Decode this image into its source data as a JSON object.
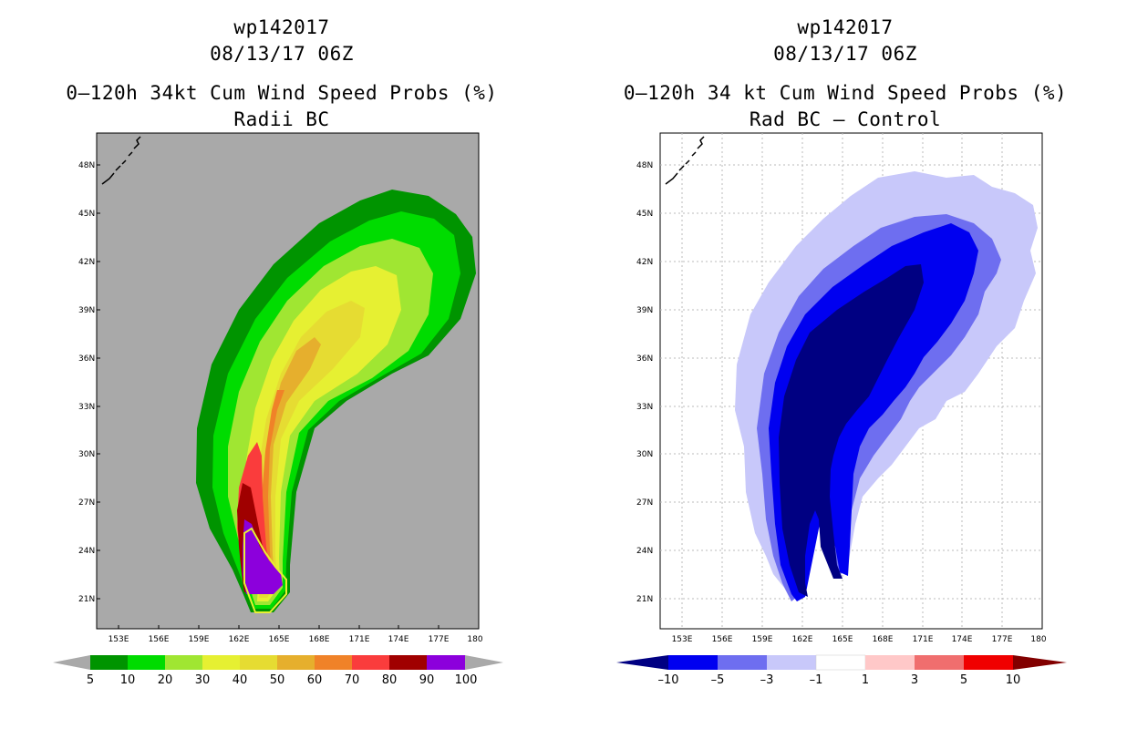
{
  "colors": {
    "land_bg": "#a9a9a9",
    "ocean_bg": "#ffffff",
    "prob_levels": [
      "#009400",
      "#00dc00",
      "#a0e632",
      "#e6f032",
      "#e6dc32",
      "#e6af2d",
      "#f08228",
      "#fa3c3c",
      "#a00000",
      "#8c00dc"
    ],
    "diff_levels": [
      "#000082",
      "#0000f0",
      "#6e6ef0",
      "#c8c8fa",
      "#ffffff",
      "#ffc8c8",
      "#f06e6e",
      "#f00000",
      "#820000"
    ]
  },
  "left_panel": {
    "storm_id": "wp142017",
    "datetime": "08/13/17 06Z",
    "product": "0–120h 34kt Cum Wind Speed Probs (%)",
    "subtitle": "Radii BC",
    "lat_labels": [
      "48N",
      "45N",
      "42N",
      "39N",
      "36N",
      "33N",
      "30N",
      "27N",
      "24N",
      "21N"
    ],
    "lon_labels": [
      "153E",
      "156E",
      "159E",
      "162E",
      "165E",
      "168E",
      "171E",
      "174E",
      "177E",
      "180"
    ],
    "colorbar_labels": [
      "5",
      "10",
      "20",
      "30",
      "40",
      "50",
      "60",
      "70",
      "80",
      "90",
      "100"
    ]
  },
  "right_panel": {
    "storm_id": "wp142017",
    "datetime": "08/13/17 06Z",
    "product": "0–120h 34 kt Cum Wind Speed Probs (%)",
    "subtitle": "Rad BC – Control",
    "lat_labels": [
      "48N",
      "45N",
      "42N",
      "39N",
      "36N",
      "33N",
      "30N",
      "27N",
      "24N",
      "21N"
    ],
    "lon_labels": [
      "153E",
      "156E",
      "159E",
      "162E",
      "165E",
      "168E",
      "171E",
      "174E",
      "177E",
      "180"
    ],
    "colorbar_labels": [
      "–10",
      "–5",
      "–3",
      "–1",
      "1",
      "3",
      "5",
      "10"
    ]
  }
}
